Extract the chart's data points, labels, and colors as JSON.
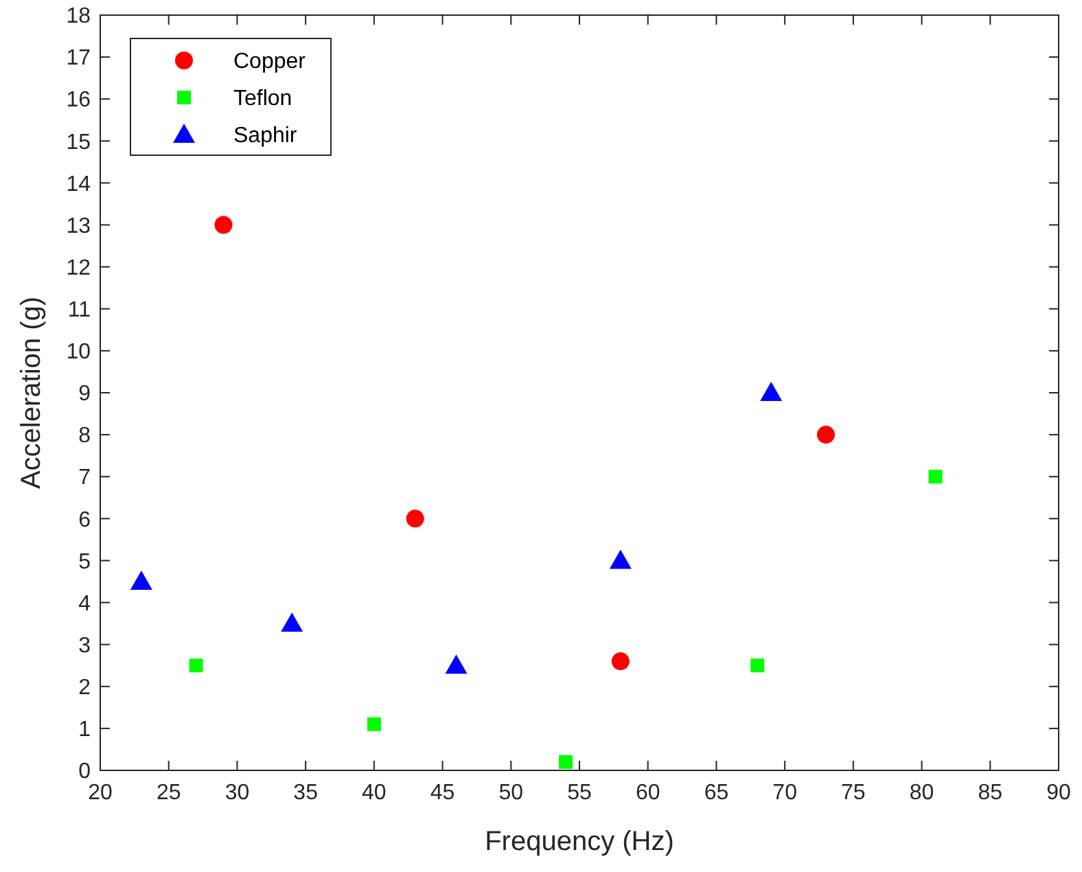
{
  "chart_data": {
    "type": "scatter",
    "xlabel": "Frequency (Hz)",
    "ylabel": "Acceleration (g)",
    "xlim": [
      20,
      90
    ],
    "xticks": [
      20,
      25,
      30,
      35,
      40,
      45,
      50,
      55,
      60,
      65,
      70,
      75,
      80,
      85,
      90
    ],
    "ylim": [
      0,
      18
    ],
    "yticks": [
      0,
      1,
      2,
      3,
      4,
      5,
      6,
      7,
      8,
      9,
      10,
      11,
      12,
      13,
      14,
      15,
      16,
      17,
      18
    ],
    "grid": false,
    "legend": "top left",
    "series": [
      {
        "name": "Copper",
        "color": "#ff0000",
        "marker": "circle",
        "x": [
          29,
          43,
          58,
          73
        ],
        "values": [
          13,
          6,
          2.6,
          8
        ]
      },
      {
        "name": "Teflon",
        "color": "#00ff00",
        "marker": "square",
        "x": [
          27,
          40,
          54,
          68,
          81
        ],
        "values": [
          2.5,
          1.1,
          0.2,
          2.5,
          7
        ]
      },
      {
        "name": "Saphir",
        "color": "#0000ff",
        "marker": "triangle",
        "x": [
          23,
          34,
          46,
          58,
          69
        ],
        "values": [
          4.5,
          3.5,
          2.5,
          5,
          9
        ]
      }
    ]
  }
}
